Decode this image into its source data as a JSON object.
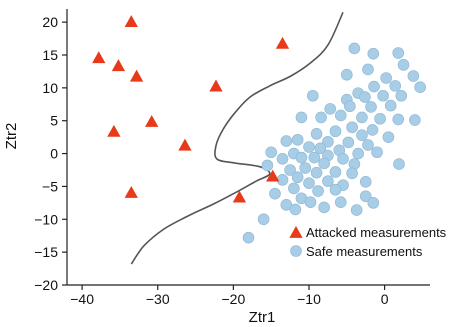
{
  "chart_data": {
    "type": "scatter",
    "xlabel": "Ztr1",
    "ylabel": "Ztr2",
    "xlim": [
      -42,
      6
    ],
    "ylim": [
      -20,
      22
    ],
    "x_ticks": [
      -40,
      -30,
      -20,
      -10,
      0
    ],
    "y_ticks": [
      20,
      15,
      10,
      5,
      0,
      -5,
      -10,
      -15,
      -20
    ],
    "x_tick_labels": [
      "−40",
      "−30",
      "−20",
      "−10",
      "0"
    ],
    "y_tick_labels": [
      "20",
      "15",
      "10",
      "5",
      "0",
      "−5",
      "−10",
      "−15",
      "−20"
    ],
    "grid": false,
    "legend_position": "bottom-right",
    "series": [
      {
        "name": "Attacked measurements",
        "marker": "triangle",
        "color": "#e8391a",
        "points": [
          [
            -33.5,
            20.0
          ],
          [
            -37.8,
            14.5
          ],
          [
            -35.2,
            13.3
          ],
          [
            -32.8,
            11.7
          ],
          [
            -13.5,
            16.7
          ],
          [
            -22.3,
            10.2
          ],
          [
            -30.8,
            4.8
          ],
          [
            -35.8,
            3.3
          ],
          [
            -26.4,
            1.2
          ],
          [
            -33.5,
            -6.0
          ],
          [
            -19.2,
            -6.7
          ],
          [
            -14.8,
            -3.5
          ]
        ]
      },
      {
        "name": "Safe measurements",
        "marker": "circle",
        "color": "#a8cde6",
        "points": [
          [
            -4,
            16
          ],
          [
            -1.5,
            15.2
          ],
          [
            1.8,
            15.3
          ],
          [
            -5,
            12
          ],
          [
            2.5,
            13.5
          ],
          [
            -2.2,
            12.8
          ],
          [
            0.2,
            11.5
          ],
          [
            3.8,
            11.8
          ],
          [
            4.7,
            10.1
          ],
          [
            1.4,
            10.3
          ],
          [
            -1.4,
            10.2
          ],
          [
            -3.5,
            9.2
          ],
          [
            -9.5,
            8.8
          ],
          [
            -5,
            8.2
          ],
          [
            -2.6,
            8.6
          ],
          [
            -0.2,
            8.8
          ],
          [
            2.2,
            8.8
          ],
          [
            -4.6,
            7.2
          ],
          [
            -7.2,
            6.8
          ],
          [
            -1.8,
            7.1
          ],
          [
            0.8,
            7.3
          ],
          [
            -5.8,
            5.8
          ],
          [
            -3,
            5.5
          ],
          [
            -0.6,
            5.3
          ],
          [
            1.8,
            5.2
          ],
          [
            4,
            5.1
          ],
          [
            -8.4,
            5.5
          ],
          [
            -11,
            5.5
          ],
          [
            -4.3,
            4
          ],
          [
            -1.6,
            3.6
          ],
          [
            -6.5,
            3.4
          ],
          [
            -9,
            3
          ],
          [
            -3,
            2.8
          ],
          [
            0.5,
            2.5
          ],
          [
            -11.5,
            2.1
          ],
          [
            -13,
            1.9
          ],
          [
            -7.5,
            1.8
          ],
          [
            -4.8,
            1.7
          ],
          [
            -2.2,
            1.3
          ],
          [
            -10,
            1
          ],
          [
            -8.5,
            0.8
          ],
          [
            -6,
            0.5
          ],
          [
            -15,
            0.2
          ],
          [
            -12,
            0
          ],
          [
            -3.5,
            0
          ],
          [
            -11,
            -0.6
          ],
          [
            -9.3,
            -0.6
          ],
          [
            -7.5,
            -0.3
          ],
          [
            -5.5,
            -0.8
          ],
          [
            -1,
            0.2
          ],
          [
            -13.5,
            -0.8
          ],
          [
            -8,
            -1.5
          ],
          [
            -4,
            -1.6
          ],
          [
            1.9,
            -1.6
          ],
          [
            -10.5,
            -2.2
          ],
          [
            -15.5,
            -1.8
          ],
          [
            -12.5,
            -2.5
          ],
          [
            -9,
            -2.9
          ],
          [
            -6.5,
            -2.8
          ],
          [
            -4.3,
            -3
          ],
          [
            -11.5,
            -3.6
          ],
          [
            -13.5,
            -4
          ],
          [
            -7.5,
            -4.2
          ],
          [
            -10,
            -4.5
          ],
          [
            -5.5,
            -4.8
          ],
          [
            -2.5,
            -4.3
          ],
          [
            -12,
            -5.3
          ],
          [
            -8.8,
            -5.7
          ],
          [
            -6.5,
            -5.5
          ],
          [
            -14.5,
            -6.1
          ],
          [
            -11,
            -6.8
          ],
          [
            -13,
            -7.8
          ],
          [
            -9.8,
            -7.4
          ],
          [
            -5.8,
            -7.4
          ],
          [
            -2.5,
            -6.5
          ],
          [
            -11.8,
            -8.5
          ],
          [
            -3.7,
            -8.6
          ],
          [
            -8,
            -8.2
          ],
          [
            -1.5,
            -7.5
          ],
          [
            -16,
            -10
          ],
          [
            -18,
            -12.8
          ]
        ]
      }
    ],
    "boundary_curve": [
      [
        -33.5,
        -16.8
      ],
      [
        -31.8,
        -14.0
      ],
      [
        -29.2,
        -11.5
      ],
      [
        -26,
        -9.5
      ],
      [
        -22.5,
        -7.6
      ],
      [
        -19.5,
        -5.8
      ],
      [
        -17,
        -4.2
      ],
      [
        -15.2,
        -3.1
      ],
      [
        -16.5,
        -2.0
      ],
      [
        -20,
        -1.4
      ],
      [
        -22.2,
        -0.8
      ],
      [
        -22.3,
        1.2
      ],
      [
        -21.4,
        3.6
      ],
      [
        -19.8,
        6.2
      ],
      [
        -17.8,
        8.6
      ],
      [
        -15.2,
        10.3
      ],
      [
        -12.4,
        11.8
      ],
      [
        -9.8,
        13.8
      ],
      [
        -7.5,
        16.5
      ],
      [
        -5.5,
        21.5
      ]
    ],
    "legend": [
      {
        "label": "Attacked measurements",
        "marker": "triangle",
        "color": "#e8391a"
      },
      {
        "label": "Safe measurements",
        "marker": "circle",
        "color": "#a8cde6"
      }
    ]
  }
}
